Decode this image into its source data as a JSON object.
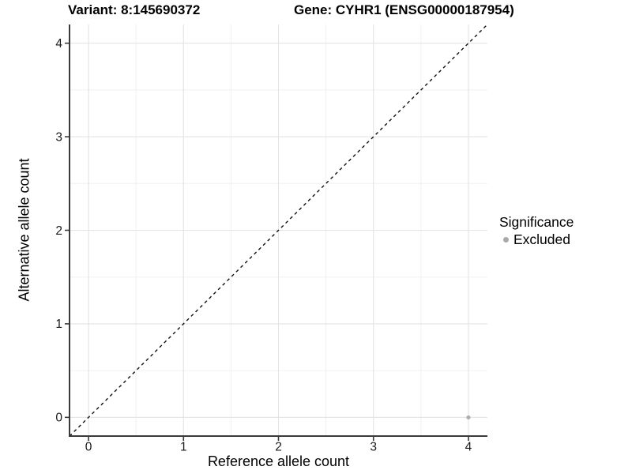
{
  "titles": {
    "variant": "Variant: 8:145690372",
    "gene": "Gene: CYHR1 (ENSG00000187954)"
  },
  "chart_data": {
    "type": "scatter",
    "xlabel": "Reference allele count",
    "ylabel": "Alternative allele count",
    "xlim": [
      -0.2,
      4.2
    ],
    "ylim": [
      -0.2,
      4.2
    ],
    "x_ticks": [
      0,
      1,
      2,
      3,
      4
    ],
    "y_ticks": [
      0,
      1,
      2,
      3,
      4
    ],
    "x_minor": [
      0.5,
      1.5,
      2.5,
      3.5
    ],
    "y_minor": [
      0.5,
      1.5,
      2.5,
      3.5
    ],
    "grid": "major and minor gridlines, white background",
    "reference_line": {
      "kind": "abline",
      "slope": 1,
      "intercept": 0,
      "style": "dashed",
      "color": "#111111"
    },
    "series": [
      {
        "name": "Excluded",
        "color": "#adadad",
        "points": [
          {
            "x": 4,
            "y": 0
          }
        ]
      }
    ],
    "legend": {
      "title": "Significance",
      "position": "right",
      "entries": [
        {
          "label": "Excluded",
          "color": "#a9a9a9",
          "marker": "circle"
        }
      ]
    },
    "style_colors": {
      "axis_line": "#3a3a3a",
      "tick_label": "#1a1a1a",
      "grid_major": "#e3e3e3",
      "grid_minor": "#f0f0f0"
    }
  }
}
